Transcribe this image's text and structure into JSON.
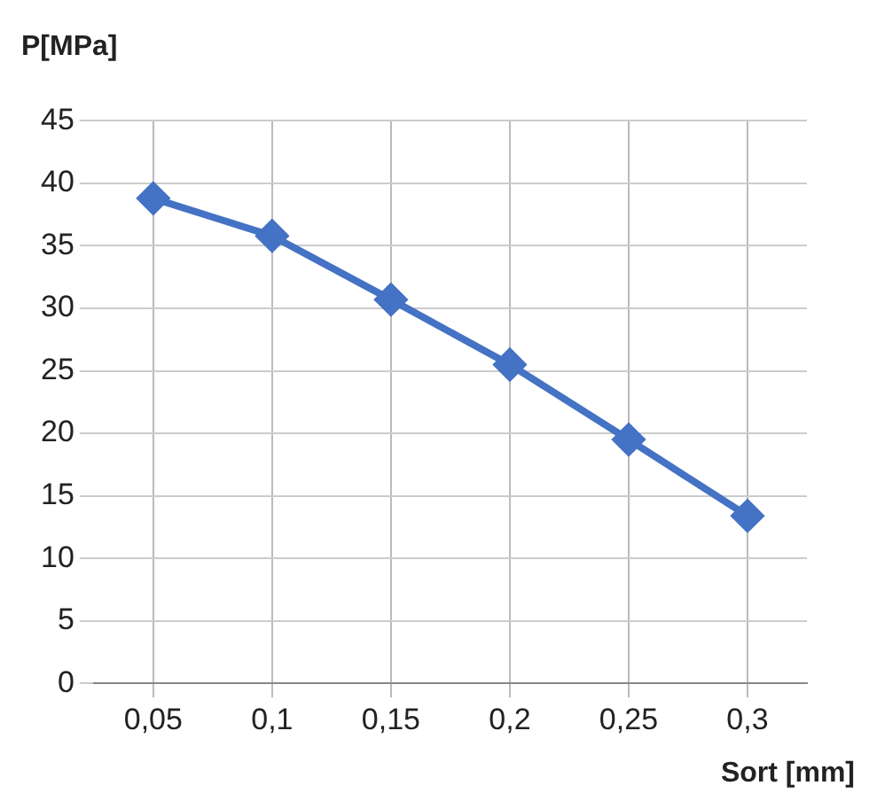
{
  "chart_data": {
    "type": "line",
    "xlabel": "Sort [mm]",
    "ylabel": "P[MPa]",
    "categories": [
      "0,05",
      "0,1",
      "0,15",
      "0,2",
      "0,25",
      "0,3"
    ],
    "series": [
      {
        "color": "#4472c4",
        "values": [
          38.8,
          35.8,
          30.7,
          25.5,
          19.5,
          13.4
        ]
      }
    ],
    "ylim": [
      0,
      45
    ],
    "yticks": [
      0,
      5,
      10,
      15,
      20,
      25,
      30,
      35,
      40,
      45
    ],
    "grid": true,
    "legend": false,
    "marker": "diamond",
    "line_style": "solid"
  }
}
